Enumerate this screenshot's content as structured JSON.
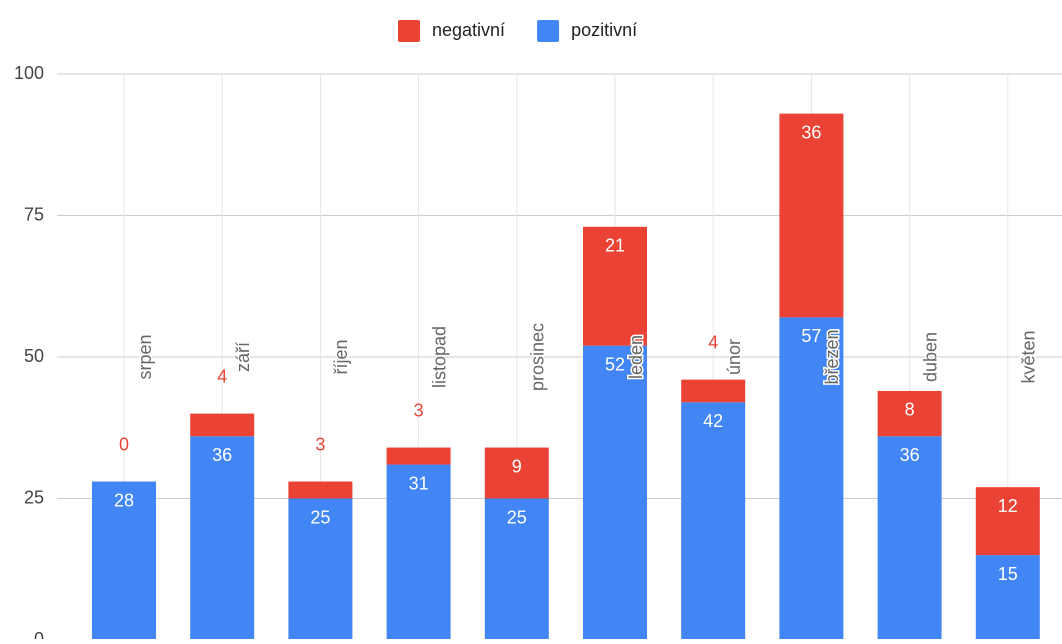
{
  "chart_data": {
    "type": "bar",
    "stacked": true,
    "categories": [
      "srpen",
      "září",
      "říjen",
      "listopad",
      "prosinec",
      "leden",
      "únor",
      "březen",
      "duben",
      "květen"
    ],
    "series": [
      {
        "name": "pozitivní",
        "color": "#4285f4",
        "values": [
          28,
          36,
          25,
          31,
          25,
          52,
          42,
          57,
          36,
          15
        ]
      },
      {
        "name": "negativní",
        "color": "#ea4335",
        "values": [
          0,
          4,
          3,
          3,
          9,
          21,
          4,
          36,
          8,
          12
        ]
      }
    ],
    "ylim": [
      0,
      100
    ],
    "yticks": [
      0,
      25,
      50,
      75,
      100
    ],
    "grid": true,
    "legend": "top"
  }
}
